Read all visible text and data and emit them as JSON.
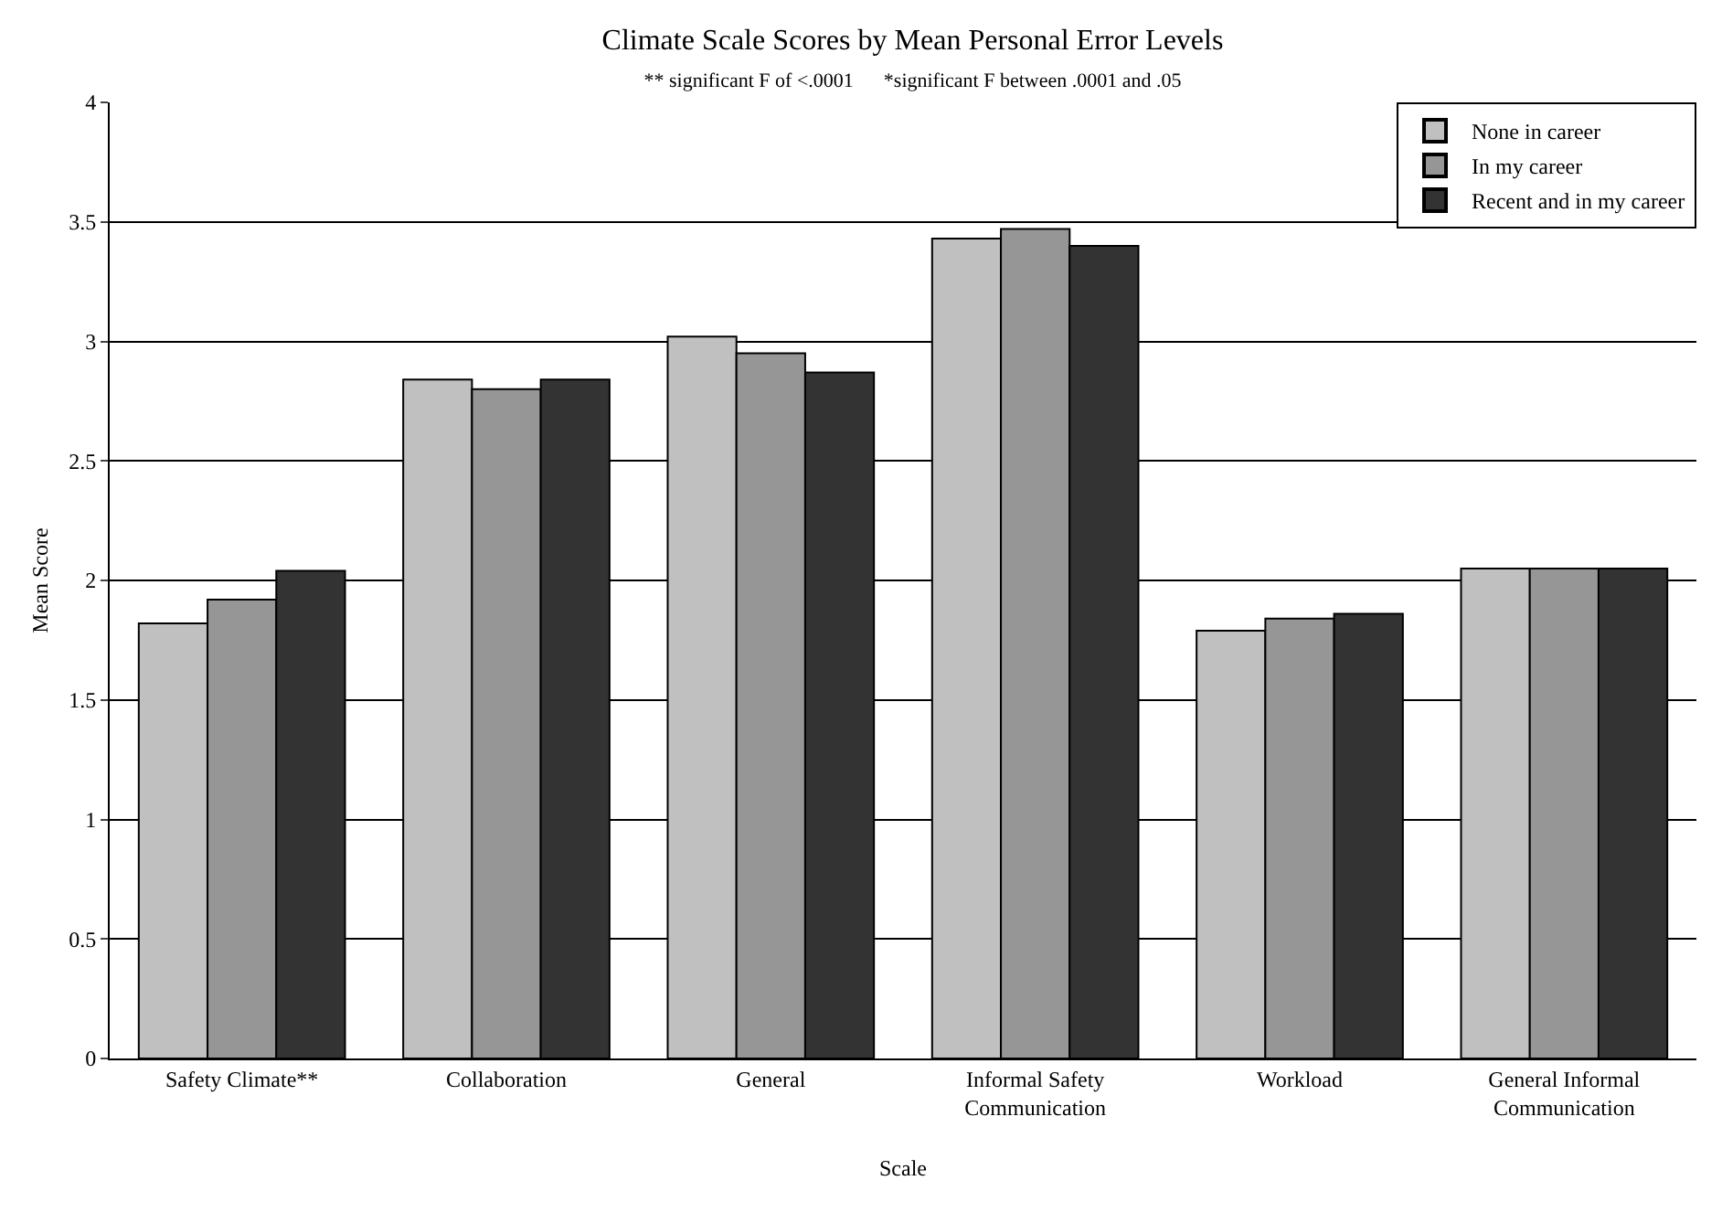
{
  "chart_data": {
    "type": "bar",
    "title": "Climate Scale Scores by Mean Personal Error Levels",
    "subtitle": "** significant F of <.0001      *significant F between .0001 and .05",
    "xlabel": "Scale",
    "ylabel": "Mean Score",
    "categories": [
      "Safety Climate**",
      "Collaboration",
      "General",
      "Informal Safety Communication",
      "Workload",
      "General Informal Communication"
    ],
    "series": [
      {
        "name": "None in career",
        "color": "#c0c0c0",
        "values": [
          1.82,
          2.84,
          3.02,
          3.43,
          1.79,
          2.05
        ]
      },
      {
        "name": "In my career",
        "color": "#969696",
        "values": [
          1.92,
          2.8,
          2.95,
          3.47,
          1.84,
          2.05
        ]
      },
      {
        "name": "Recent and in my career",
        "color": "#333333",
        "values": [
          2.04,
          2.84,
          2.87,
          3.4,
          1.86,
          2.05
        ]
      }
    ],
    "ylim": [
      0,
      4
    ],
    "yticks": [
      0,
      0.5,
      1,
      1.5,
      2,
      2.5,
      3,
      3.5,
      4
    ],
    "grid": "y",
    "legend": "top right"
  }
}
